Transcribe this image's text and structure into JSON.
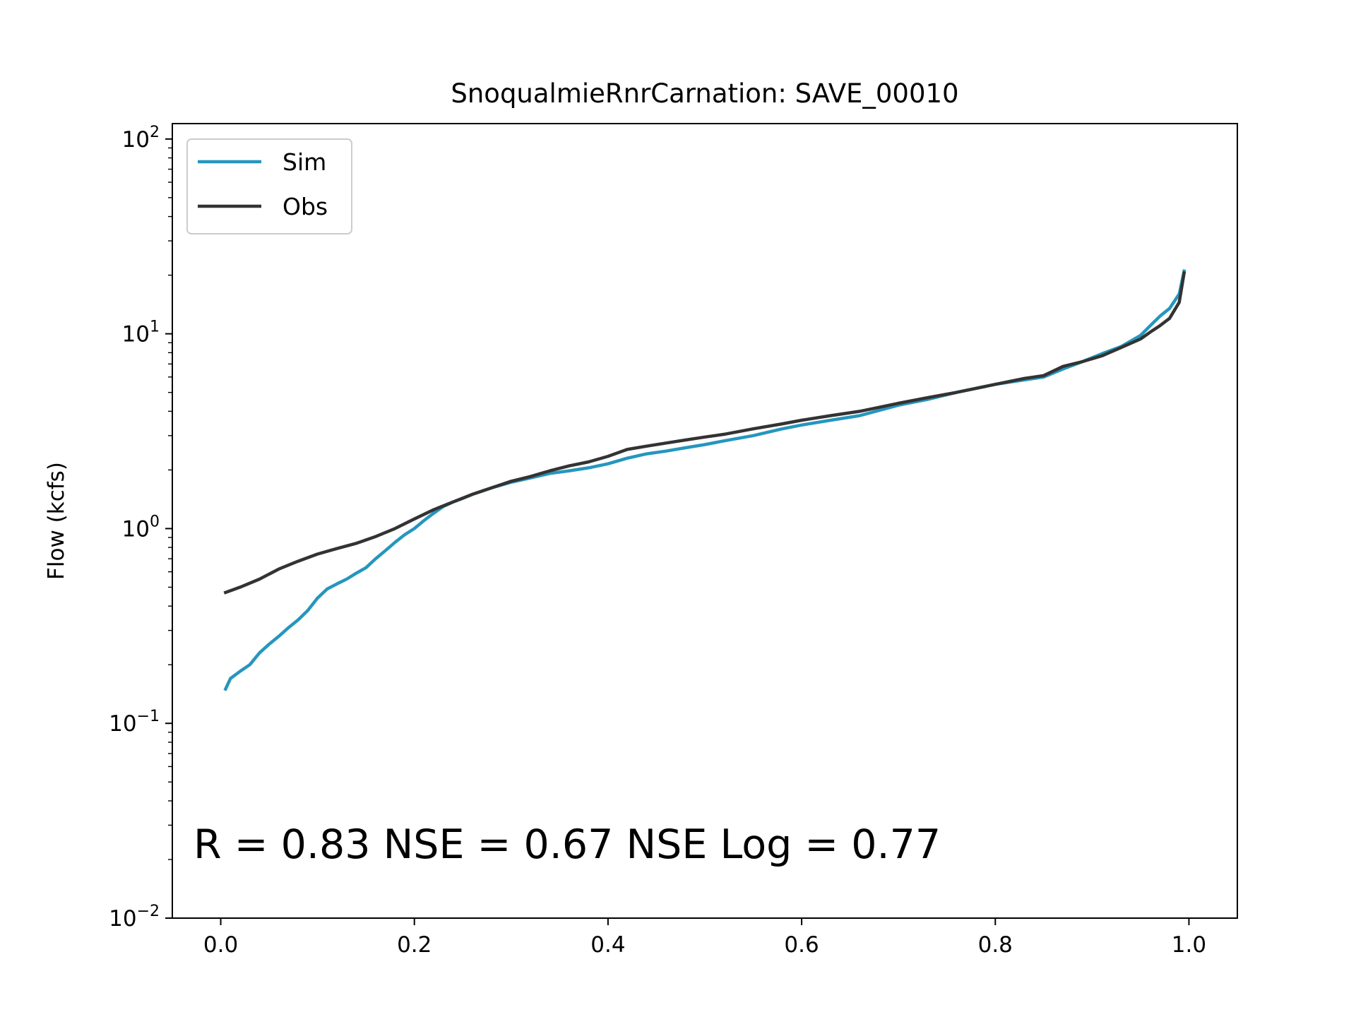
{
  "chart_data": {
    "type": "line",
    "title": "SnoqualmieRnrCarnation: SAVE_00010",
    "xlabel": "",
    "ylabel": "Flow (kcfs)",
    "yscale": "log",
    "xlim": [
      -0.05,
      1.05
    ],
    "ylim": [
      0.01,
      120
    ],
    "xticks": [
      0.0,
      0.2,
      0.4,
      0.6,
      0.8,
      1.0
    ],
    "xtick_labels": [
      "0.0",
      "0.2",
      "0.4",
      "0.6",
      "0.8",
      "1.0"
    ],
    "yticks": [
      0.01,
      0.1,
      1,
      10,
      100
    ],
    "ytick_labels": [
      {
        "base": "10",
        "exp": "−2"
      },
      {
        "base": "10",
        "exp": "−1"
      },
      {
        "base": "10",
        "exp": "0"
      },
      {
        "base": "10",
        "exp": "1"
      },
      {
        "base": "10",
        "exp": "2"
      }
    ],
    "legend_position": "top-left",
    "grid": false,
    "annotation": "R = 0.83  NSE = 0.67  NSE Log = 0.77",
    "series": [
      {
        "name": "Sim",
        "color": "#2596be",
        "x": [
          0.005,
          0.01,
          0.02,
          0.03,
          0.04,
          0.05,
          0.06,
          0.07,
          0.08,
          0.09,
          0.1,
          0.11,
          0.12,
          0.13,
          0.14,
          0.15,
          0.16,
          0.17,
          0.18,
          0.19,
          0.2,
          0.21,
          0.22,
          0.23,
          0.24,
          0.25,
          0.26,
          0.28,
          0.3,
          0.32,
          0.34,
          0.36,
          0.38,
          0.4,
          0.42,
          0.44,
          0.46,
          0.48,
          0.5,
          0.52,
          0.55,
          0.58,
          0.6,
          0.63,
          0.66,
          0.7,
          0.73,
          0.76,
          0.8,
          0.83,
          0.85,
          0.87,
          0.89,
          0.91,
          0.93,
          0.95,
          0.96,
          0.97,
          0.98,
          0.99,
          0.995
        ],
        "y": [
          0.15,
          0.17,
          0.185,
          0.2,
          0.23,
          0.255,
          0.28,
          0.31,
          0.34,
          0.38,
          0.44,
          0.49,
          0.52,
          0.55,
          0.59,
          0.63,
          0.7,
          0.77,
          0.85,
          0.93,
          1.0,
          1.1,
          1.2,
          1.3,
          1.37,
          1.43,
          1.5,
          1.62,
          1.73,
          1.82,
          1.92,
          1.98,
          2.05,
          2.15,
          2.3,
          2.42,
          2.5,
          2.6,
          2.7,
          2.82,
          3.0,
          3.25,
          3.4,
          3.6,
          3.8,
          4.3,
          4.6,
          5.0,
          5.5,
          5.8,
          6.0,
          6.6,
          7.2,
          7.9,
          8.6,
          9.8,
          11.0,
          12.3,
          13.5,
          16.0,
          21.0
        ]
      },
      {
        "name": "Obs",
        "color": "#333333",
        "x": [
          0.005,
          0.02,
          0.04,
          0.06,
          0.08,
          0.1,
          0.12,
          0.14,
          0.16,
          0.18,
          0.2,
          0.22,
          0.24,
          0.26,
          0.28,
          0.3,
          0.32,
          0.34,
          0.36,
          0.38,
          0.4,
          0.42,
          0.44,
          0.46,
          0.48,
          0.5,
          0.52,
          0.55,
          0.58,
          0.6,
          0.63,
          0.66,
          0.7,
          0.73,
          0.76,
          0.8,
          0.83,
          0.85,
          0.87,
          0.89,
          0.91,
          0.93,
          0.95,
          0.96,
          0.97,
          0.98,
          0.99,
          0.995
        ],
        "y": [
          0.47,
          0.5,
          0.55,
          0.62,
          0.68,
          0.74,
          0.79,
          0.84,
          0.91,
          1.0,
          1.12,
          1.25,
          1.37,
          1.5,
          1.62,
          1.75,
          1.85,
          1.98,
          2.1,
          2.2,
          2.35,
          2.55,
          2.65,
          2.75,
          2.85,
          2.95,
          3.05,
          3.25,
          3.45,
          3.6,
          3.8,
          4.0,
          4.4,
          4.7,
          5.0,
          5.5,
          5.9,
          6.1,
          6.8,
          7.2,
          7.7,
          8.5,
          9.4,
          10.2,
          11.0,
          12.0,
          14.5,
          20.5
        ]
      }
    ]
  }
}
